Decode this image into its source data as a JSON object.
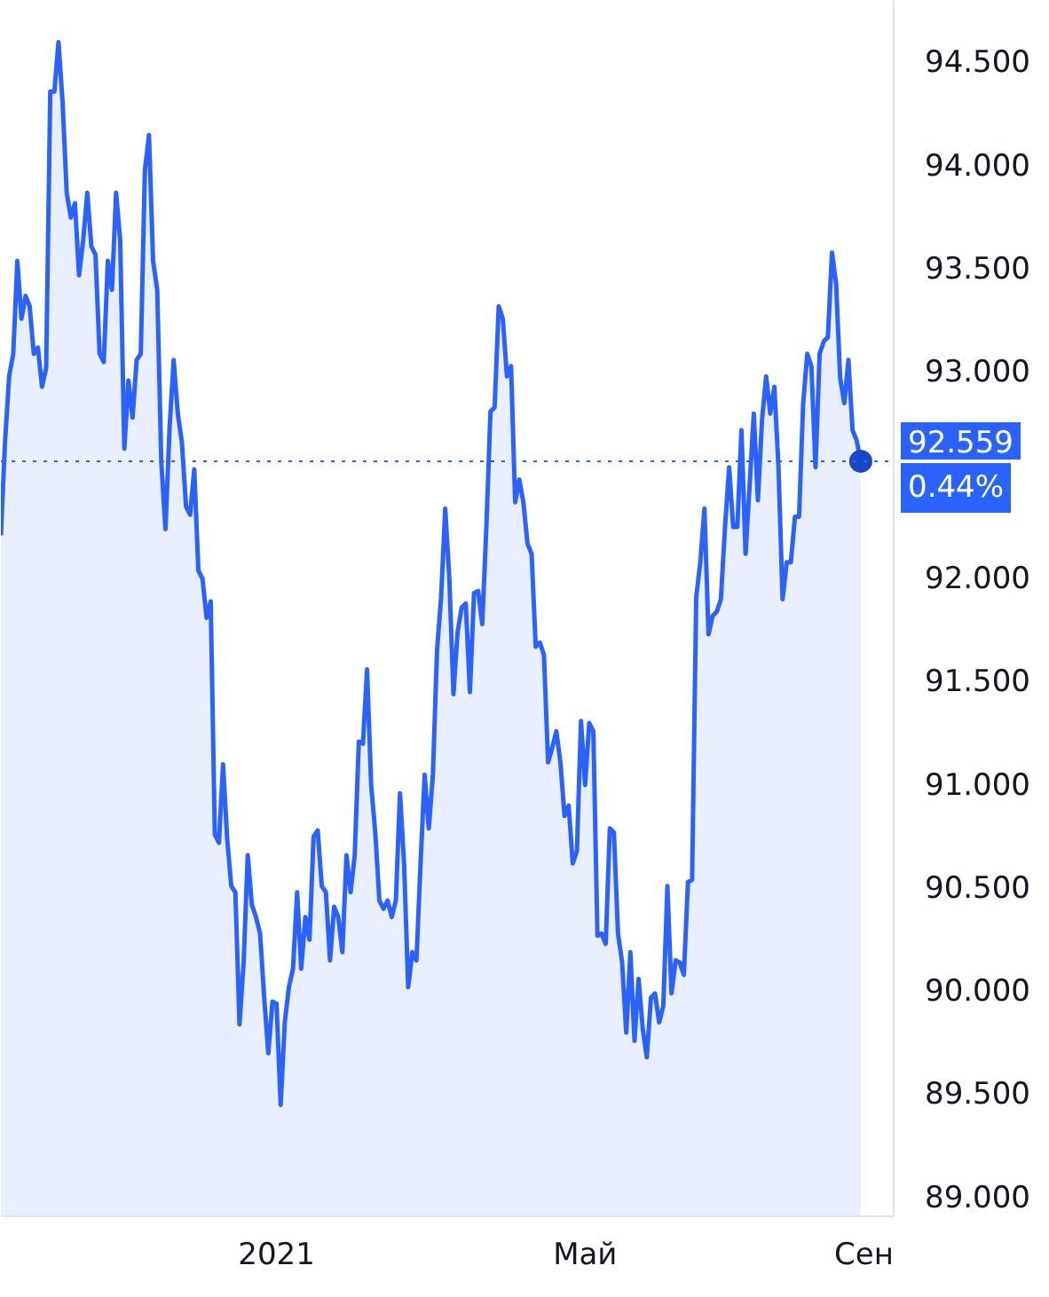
{
  "chart_data": {
    "type": "area",
    "categories": [
      null,
      null,
      null,
      null,
      null,
      null,
      null,
      null,
      null,
      null,
      null,
      null,
      null,
      null,
      null,
      null,
      null,
      null,
      null,
      null,
      null,
      null,
      null,
      null,
      null,
      null,
      null,
      null,
      null,
      null,
      null,
      null,
      null,
      null,
      null,
      null,
      null,
      null,
      null,
      null,
      null,
      null,
      null,
      null,
      null,
      null,
      null,
      null,
      null,
      null,
      null,
      null,
      null,
      null,
      null,
      null,
      null,
      null,
      null,
      null,
      null,
      null,
      null,
      null,
      null,
      null,
      null,
      "2021",
      null,
      null,
      null,
      null,
      null,
      null,
      null,
      null,
      null,
      null,
      null,
      null,
      null,
      null,
      null,
      null,
      null,
      null,
      null,
      null,
      null,
      null,
      null,
      null,
      null,
      null,
      null,
      null,
      null,
      null,
      null,
      null,
      null,
      null,
      null,
      null,
      null,
      null,
      null,
      null,
      null,
      null,
      null,
      null,
      null,
      null,
      null,
      null,
      null,
      null,
      null,
      null,
      null,
      null,
      null,
      null,
      null,
      null,
      null,
      null,
      null,
      null,
      null,
      null,
      null,
      null,
      null,
      null,
      null,
      null,
      null,
      null,
      null,
      null,
      "Май",
      null,
      null,
      null,
      null,
      null,
      null,
      null,
      null,
      null,
      null,
      null,
      null,
      null,
      null,
      null,
      null,
      null,
      null,
      null,
      null,
      null,
      null,
      null,
      null,
      null,
      null,
      null,
      null,
      null,
      null,
      null,
      null,
      null,
      null,
      null,
      null,
      null,
      null,
      null,
      null,
      null,
      null,
      null,
      null,
      null,
      null,
      null,
      null,
      null,
      null,
      null,
      null,
      null,
      null,
      null,
      null,
      null,
      null,
      null,
      null,
      null,
      null,
      null,
      null,
      null,
      null,
      null,
      "Сен"
    ],
    "series": [
      {
        "color": "#2962ff",
        "values": [
          92.2,
          92.65,
          92.97,
          93.08,
          93.53,
          93.25,
          93.36,
          93.31,
          93.08,
          93.11,
          92.92,
          93.01,
          94.35,
          94.35,
          94.59,
          94.3,
          93.86,
          93.74,
          93.81,
          93.46,
          93.63,
          93.86,
          93.6,
          93.56,
          93.08,
          93.04,
          93.53,
          93.39,
          93.86,
          93.63,
          92.62,
          92.95,
          92.77,
          93.05,
          93.08,
          93.97,
          94.14,
          93.53,
          93.39,
          92.55,
          92.23,
          92.72,
          93.05,
          92.79,
          92.65,
          92.34,
          92.3,
          92.52,
          92.03,
          91.99,
          91.8,
          91.88,
          90.75,
          90.71,
          91.09,
          90.73,
          90.5,
          90.47,
          89.83,
          90.13,
          90.65,
          90.41,
          90.35,
          90.27,
          89.96,
          89.69,
          89.94,
          89.93,
          89.44,
          89.84,
          90.01,
          90.1,
          90.47,
          90.1,
          90.35,
          90.24,
          90.74,
          90.77,
          90.5,
          90.47,
          90.14,
          90.4,
          90.35,
          90.18,
          90.65,
          90.47,
          90.65,
          91.2,
          91.19,
          91.55,
          90.99,
          90.76,
          90.43,
          90.39,
          90.43,
          90.35,
          90.43,
          90.95,
          90.61,
          90.01,
          90.18,
          90.14,
          90.61,
          91.04,
          90.78,
          91.04,
          91.64,
          91.9,
          92.33,
          91.99,
          91.43,
          91.73,
          91.85,
          91.87,
          91.44,
          91.92,
          91.93,
          91.77,
          92.24,
          92.8,
          92.82,
          93.31,
          93.25,
          92.97,
          93.02,
          92.36,
          92.47,
          92.36,
          92.16,
          92.11,
          91.66,
          91.68,
          91.62,
          91.1,
          91.17,
          91.25,
          91.1,
          90.84,
          90.89,
          90.61,
          90.67,
          91.3,
          90.99,
          91.29,
          91.25,
          90.26,
          90.27,
          90.22,
          90.78,
          90.76,
          90.27,
          90.13,
          89.79,
          90.18,
          89.75,
          90.05,
          89.81,
          89.67,
          89.96,
          89.98,
          89.84,
          89.92,
          90.5,
          89.98,
          90.14,
          90.13,
          90.07,
          90.52,
          90.53,
          91.9,
          92.07,
          92.33,
          91.72,
          91.81,
          91.83,
          91.89,
          92.24,
          92.53,
          92.24,
          92.24,
          92.71,
          92.11,
          92.45,
          92.79,
          92.37,
          92.76,
          92.97,
          92.79,
          92.92,
          92.53,
          91.89,
          92.07,
          92.07,
          92.29,
          92.29,
          92.84,
          93.08,
          93.02,
          92.53,
          93.08,
          93.14,
          93.16,
          93.57,
          93.42,
          92.96,
          92.84,
          93.05,
          92.71,
          92.66,
          92.559,
          null
        ]
      },
      {
        "type": "scatter",
        "color": "#1a47c8",
        "marker": "circle",
        "values": [
          null,
          null,
          null,
          null,
          null,
          null,
          null,
          null,
          null,
          null,
          null,
          null,
          null,
          null,
          null,
          null,
          null,
          null,
          null,
          null,
          null,
          null,
          null,
          null,
          null,
          null,
          null,
          null,
          null,
          null,
          null,
          null,
          null,
          null,
          null,
          null,
          null,
          null,
          null,
          null,
          null,
          null,
          null,
          null,
          null,
          null,
          null,
          null,
          null,
          null,
          null,
          null,
          null,
          null,
          null,
          null,
          null,
          null,
          null,
          null,
          null,
          null,
          null,
          null,
          null,
          null,
          null,
          null,
          null,
          null,
          null,
          null,
          null,
          null,
          null,
          null,
          null,
          null,
          null,
          null,
          null,
          null,
          null,
          null,
          null,
          null,
          null,
          null,
          null,
          null,
          null,
          null,
          null,
          null,
          null,
          null,
          null,
          null,
          null,
          null,
          null,
          null,
          null,
          null,
          null,
          null,
          null,
          null,
          null,
          null,
          null,
          null,
          null,
          null,
          null,
          null,
          null,
          null,
          null,
          null,
          null,
          null,
          null,
          null,
          null,
          null,
          null,
          null,
          null,
          null,
          null,
          null,
          null,
          null,
          null,
          null,
          null,
          null,
          null,
          null,
          null,
          null,
          null,
          null,
          null,
          null,
          null,
          null,
          null,
          null,
          null,
          null,
          null,
          null,
          null,
          null,
          null,
          null,
          null,
          null,
          null,
          null,
          null,
          null,
          null,
          null,
          null,
          null,
          null,
          null,
          null,
          null,
          null,
          null,
          null,
          null,
          null,
          null,
          null,
          null,
          null,
          null,
          null,
          null,
          null,
          null,
          null,
          null,
          null,
          null,
          null,
          null,
          null,
          null,
          null,
          null,
          null,
          null,
          null,
          null,
          null,
          null,
          null,
          null,
          null,
          null,
          null,
          null,
          null,
          92.559,
          null
        ]
      }
    ],
    "ylim": [
      88.9,
      94.79
    ],
    "yticks": [
      {
        "value": 89,
        "label": "89.000"
      },
      {
        "value": 89.5,
        "label": "89.500"
      },
      {
        "value": 90,
        "label": "90.000"
      },
      {
        "value": 90.5,
        "label": "90.500"
      },
      {
        "value": 91,
        "label": "91.000"
      },
      {
        "value": 91.5,
        "label": "91.500"
      },
      {
        "value": 92,
        "label": "92.000"
      },
      {
        "value": 93,
        "label": "93.000"
      },
      {
        "value": 93.5,
        "label": "93.500"
      },
      {
        "value": 94,
        "label": "94.000"
      },
      {
        "value": 94.5,
        "label": "94.500"
      }
    ],
    "ref_lines": [
      {
        "axis": "y",
        "value": 92.559,
        "label": "92.559",
        "color": "#2962ff",
        "line_style": "dotted"
      }
    ],
    "annotations": [
      "0.44%"
    ]
  }
}
